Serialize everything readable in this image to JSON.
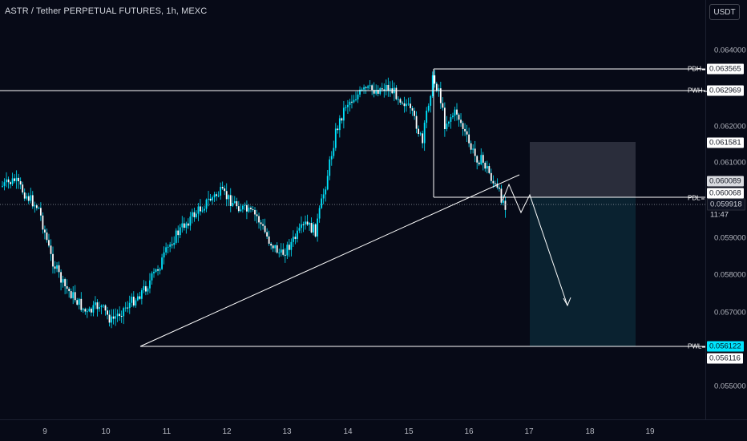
{
  "header": {
    "title": "ASTR / Tether PERPETUAL FUTURES, 1h, MEXC",
    "currency_button": "USDT"
  },
  "price_axis": {
    "ticks": [
      "0.064000",
      "0.062000",
      "0.061000",
      "0.059000",
      "0.058000",
      "0.057000",
      "0.055000"
    ]
  },
  "time_axis": {
    "ticks": [
      "9",
      "10",
      "11",
      "12",
      "13",
      "14",
      "15",
      "16",
      "17",
      "18",
      "19"
    ]
  },
  "levels": {
    "pdh": {
      "name": "PDH",
      "value": "0.063565"
    },
    "pwh": {
      "name": "PWH",
      "value": "0.062969"
    },
    "pdl": {
      "name": "PDL",
      "value": "0.060068"
    },
    "pwl": {
      "name": "PWL",
      "value": "0.056122"
    }
  },
  "labels": {
    "target_zone_top": "0.061581",
    "current_price": "0.060089",
    "last_price": "0.059918",
    "countdown": "11:47",
    "pwl_secondary": "0.056116"
  },
  "colors": {
    "background": "#070a17",
    "candle": "#00e5ff",
    "line": "#ffffff",
    "stop_zone": "#2a2d3b",
    "profit_zone": "#0a2230"
  }
}
